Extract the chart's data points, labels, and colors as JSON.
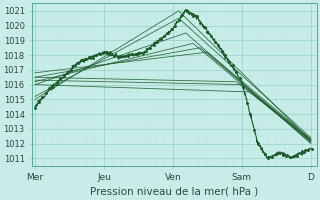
{
  "xlabel": "Pression niveau de la mer( hPa )",
  "bg_color": "#c8ece8",
  "grid_color_major": "#a0d4cc",
  "grid_color_minor": "#b8e4de",
  "line_color": "#1a5c2a",
  "ylim": [
    1010.5,
    1021.5
  ],
  "yticks": [
    1011,
    1012,
    1013,
    1014,
    1015,
    1016,
    1017,
    1018,
    1019,
    1020,
    1021
  ],
  "x_day_labels": [
    "Mer",
    "Jeu",
    "Ven",
    "Sam",
    "D"
  ],
  "x_day_positions": [
    0,
    48,
    96,
    144,
    192
  ],
  "xlim": [
    -2,
    196
  ]
}
